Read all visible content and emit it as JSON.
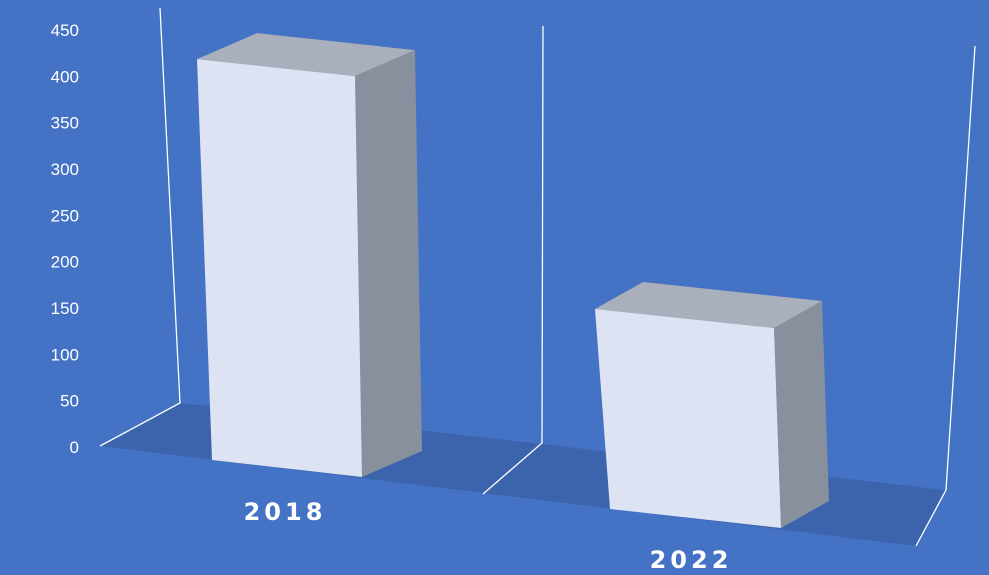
{
  "chart_data": {
    "type": "bar",
    "style": "3d-column",
    "categories": [
      "2018",
      "2022"
    ],
    "values": [
      410,
      200
    ],
    "ylim": [
      0,
      450
    ],
    "yticks": [
      0,
      50,
      100,
      150,
      200,
      250,
      300,
      350,
      400,
      450
    ],
    "title": "",
    "xlabel": "",
    "ylabel": "",
    "grid": false,
    "legend": "none",
    "colors": {
      "background": "#4472c4",
      "floor": "#3c64ad",
      "bar_front": "#dde3f2",
      "bar_side": "#87909c",
      "bar_top": "#a9b0bb",
      "axis_lines": "#ffffff"
    }
  }
}
